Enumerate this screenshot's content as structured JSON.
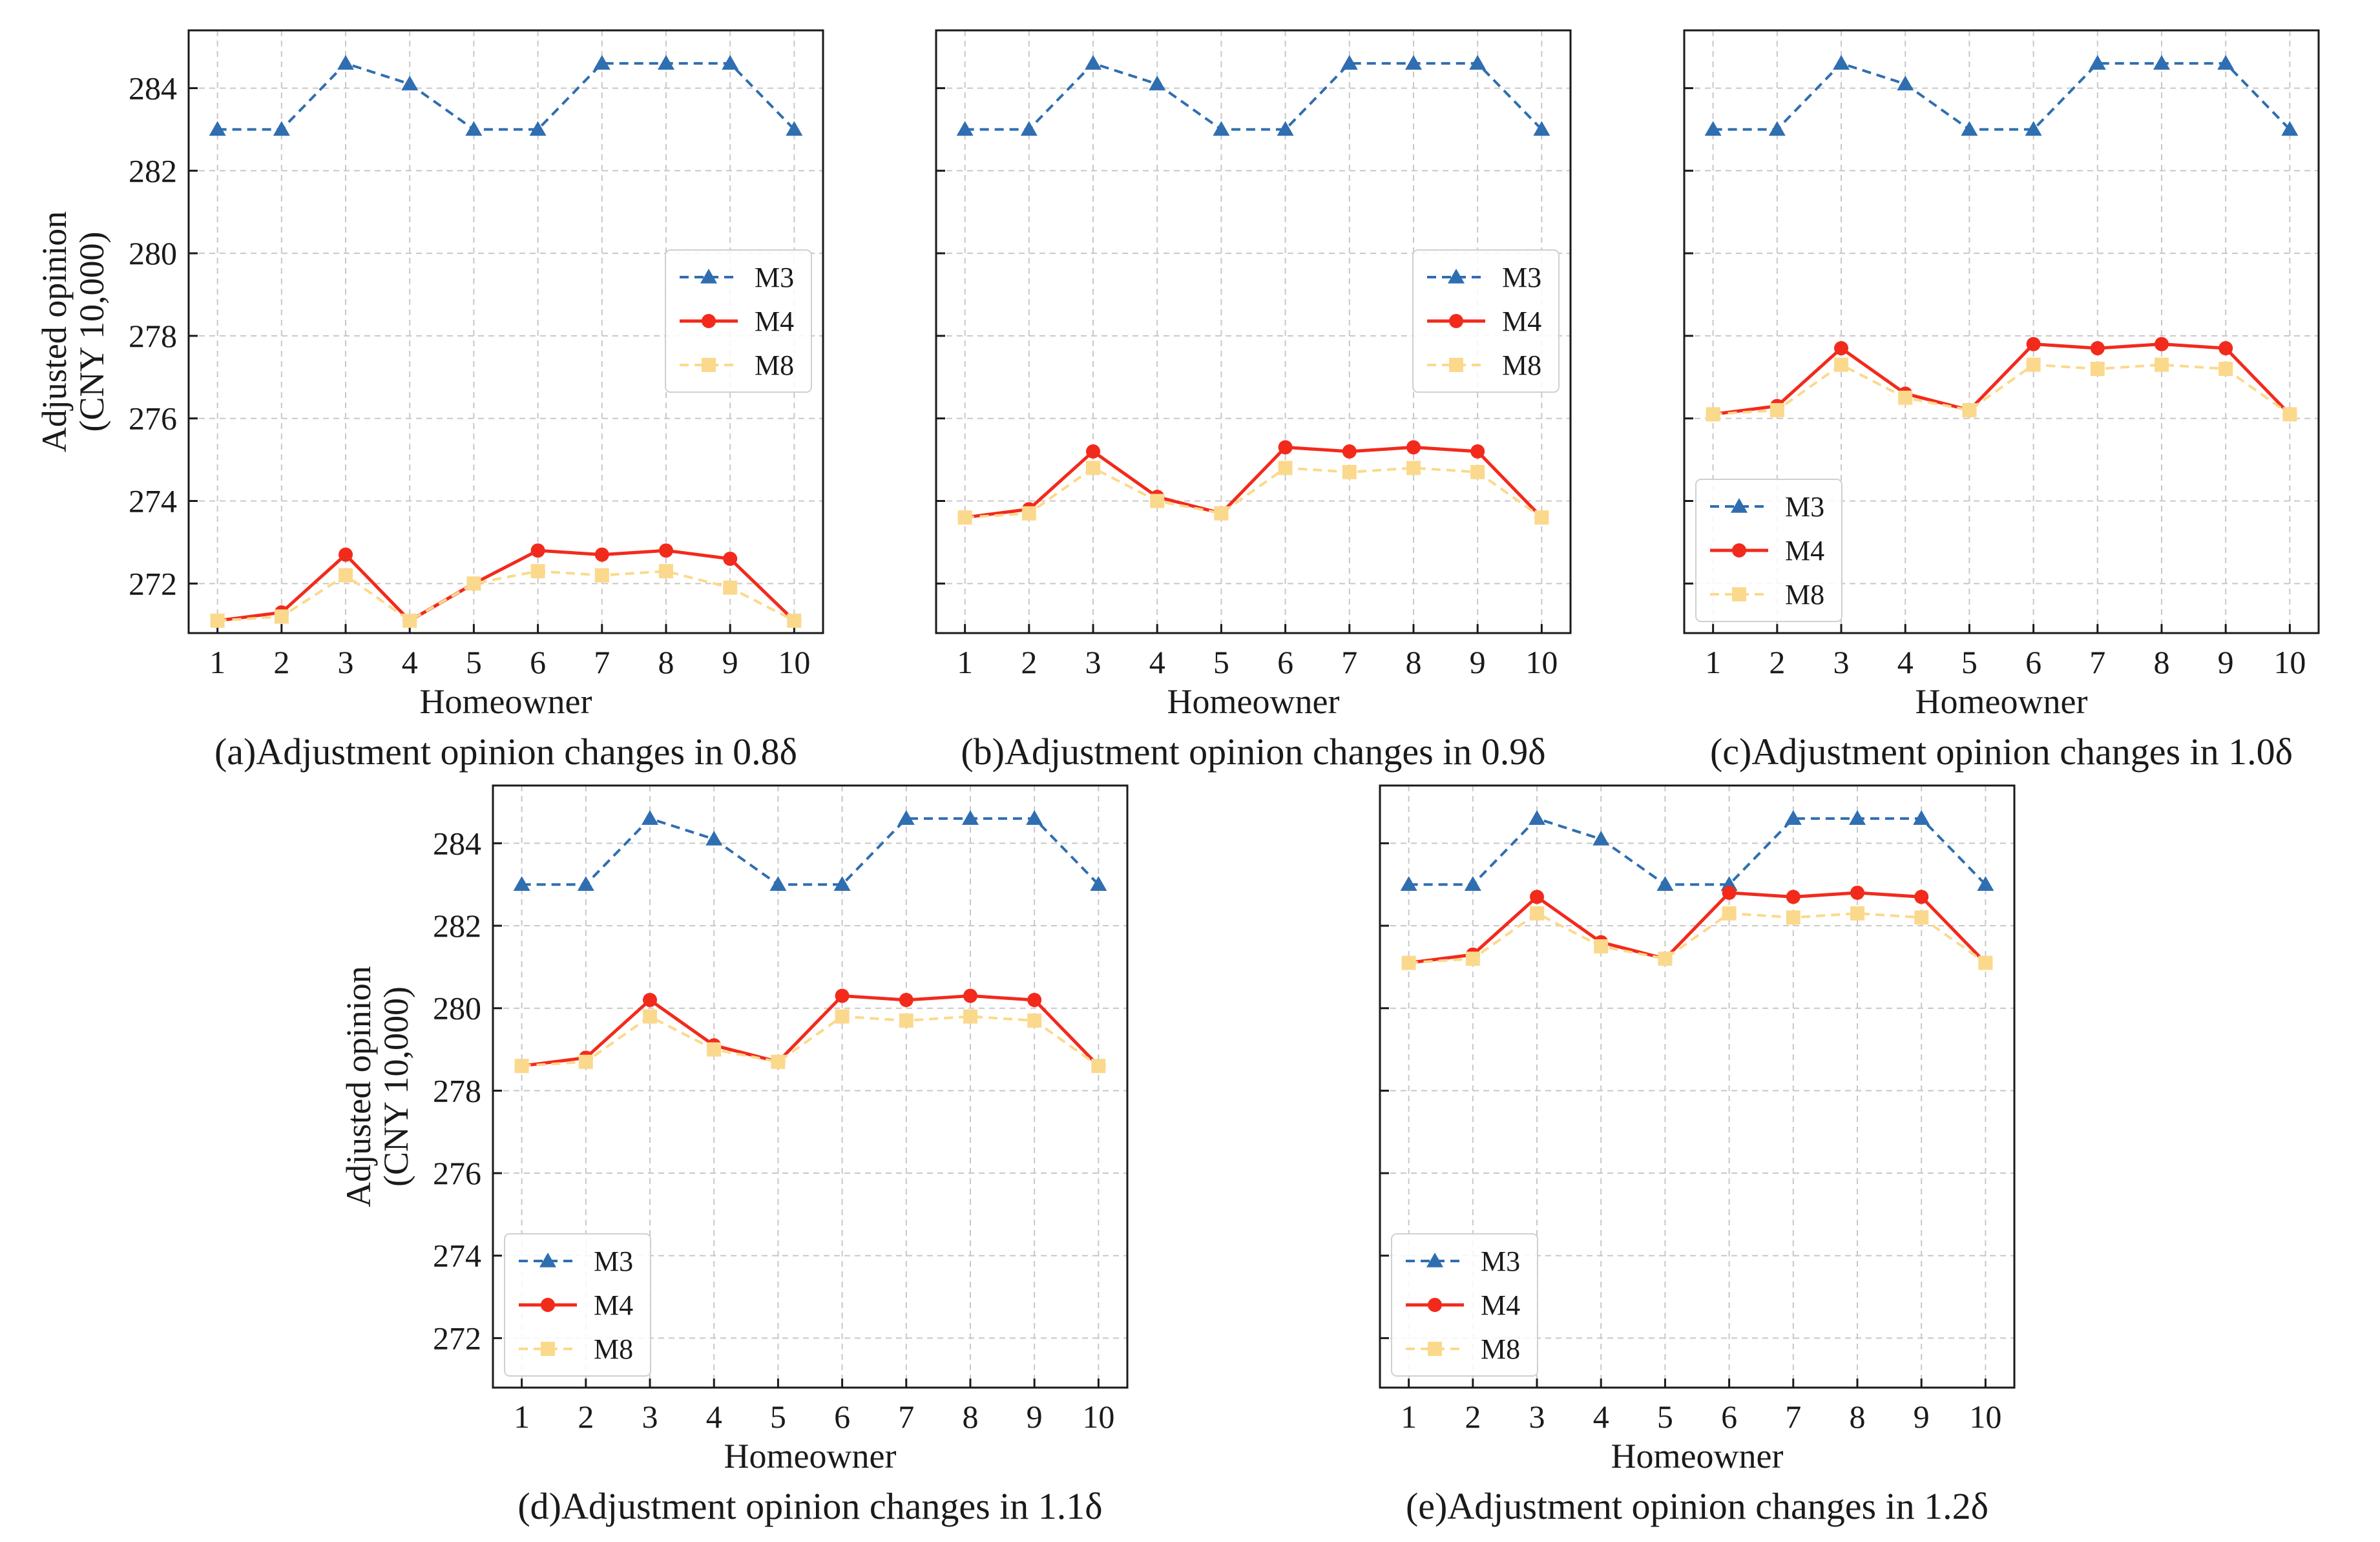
{
  "colors": {
    "M3": "#2f6eb0",
    "M4": "#f22a1c",
    "M8": "#fbd98c",
    "grid": "#c8c8c8",
    "axis": "#1a1a1a"
  },
  "chart_data": [
    {
      "type": "line",
      "caption": "(a)Adjustment opinion changes in 0.8δ",
      "xlabel": "Homeowner",
      "ylabel": [
        "Adjusted opinion",
        "(CNY 10,000)"
      ],
      "x": [
        1,
        2,
        3,
        4,
        5,
        6,
        7,
        8,
        9,
        10
      ],
      "xlim": [
        0.55,
        10.45
      ],
      "ylim": [
        270.8,
        285.4
      ],
      "yticks": [
        272,
        274,
        276,
        278,
        280,
        282,
        284
      ],
      "show_ytick_labels": true,
      "grid": true,
      "legend_position": "center-right",
      "series": [
        {
          "name": "M3",
          "marker": "triangle",
          "dash": "dashed",
          "values": [
            283.0,
            283.0,
            284.6,
            284.1,
            283.0,
            283.0,
            284.6,
            284.6,
            284.6,
            283.0
          ]
        },
        {
          "name": "M4",
          "marker": "circle",
          "dash": "solid",
          "values": [
            271.1,
            271.3,
            272.7,
            271.1,
            272.0,
            272.8,
            272.7,
            272.8,
            272.6,
            271.1
          ]
        },
        {
          "name": "M8",
          "marker": "square",
          "dash": "dashed",
          "values": [
            271.1,
            271.2,
            272.2,
            271.1,
            272.0,
            272.3,
            272.2,
            272.3,
            271.9,
            271.1
          ]
        }
      ]
    },
    {
      "type": "line",
      "caption": "(b)Adjustment opinion changes in 0.9δ",
      "xlabel": "Homeowner",
      "ylabel": [],
      "x": [
        1,
        2,
        3,
        4,
        5,
        6,
        7,
        8,
        9,
        10
      ],
      "xlim": [
        0.55,
        10.45
      ],
      "ylim": [
        270.8,
        285.4
      ],
      "yticks": [
        272,
        274,
        276,
        278,
        280,
        282,
        284
      ],
      "show_ytick_labels": false,
      "grid": true,
      "legend_position": "center-right",
      "series": [
        {
          "name": "M3",
          "marker": "triangle",
          "dash": "dashed",
          "values": [
            283.0,
            283.0,
            284.6,
            284.1,
            283.0,
            283.0,
            284.6,
            284.6,
            284.6,
            283.0
          ]
        },
        {
          "name": "M4",
          "marker": "circle",
          "dash": "solid",
          "values": [
            273.6,
            273.8,
            275.2,
            274.1,
            273.7,
            275.3,
            275.2,
            275.3,
            275.2,
            273.6
          ]
        },
        {
          "name": "M8",
          "marker": "square",
          "dash": "dashed",
          "values": [
            273.6,
            273.7,
            274.8,
            274.0,
            273.7,
            274.8,
            274.7,
            274.8,
            274.7,
            273.6
          ]
        }
      ]
    },
    {
      "type": "line",
      "caption": "(c)Adjustment opinion changes in 1.0δ",
      "xlabel": "Homeowner",
      "ylabel": [],
      "x": [
        1,
        2,
        3,
        4,
        5,
        6,
        7,
        8,
        9,
        10
      ],
      "xlim": [
        0.55,
        10.45
      ],
      "ylim": [
        270.8,
        285.4
      ],
      "yticks": [
        272,
        274,
        276,
        278,
        280,
        282,
        284
      ],
      "show_ytick_labels": false,
      "grid": true,
      "legend_position": "lower-left",
      "series": [
        {
          "name": "M3",
          "marker": "triangle",
          "dash": "dashed",
          "values": [
            283.0,
            283.0,
            284.6,
            284.1,
            283.0,
            283.0,
            284.6,
            284.6,
            284.6,
            283.0
          ]
        },
        {
          "name": "M4",
          "marker": "circle",
          "dash": "solid",
          "values": [
            276.1,
            276.3,
            277.7,
            276.6,
            276.2,
            277.8,
            277.7,
            277.8,
            277.7,
            276.1
          ]
        },
        {
          "name": "M8",
          "marker": "square",
          "dash": "dashed",
          "values": [
            276.1,
            276.2,
            277.3,
            276.5,
            276.2,
            277.3,
            277.2,
            277.3,
            277.2,
            276.1
          ]
        }
      ]
    },
    {
      "type": "line",
      "caption": "(d)Adjustment opinion changes in 1.1δ",
      "xlabel": "Homeowner",
      "ylabel": [
        "Adjusted opinion",
        "(CNY 10,000)"
      ],
      "x": [
        1,
        2,
        3,
        4,
        5,
        6,
        7,
        8,
        9,
        10
      ],
      "xlim": [
        0.55,
        10.45
      ],
      "ylim": [
        270.8,
        285.4
      ],
      "yticks": [
        272,
        274,
        276,
        278,
        280,
        282,
        284
      ],
      "show_ytick_labels": true,
      "grid": true,
      "legend_position": "lower-left",
      "series": [
        {
          "name": "M3",
          "marker": "triangle",
          "dash": "dashed",
          "values": [
            283.0,
            283.0,
            284.6,
            284.1,
            283.0,
            283.0,
            284.6,
            284.6,
            284.6,
            283.0
          ]
        },
        {
          "name": "M4",
          "marker": "circle",
          "dash": "solid",
          "values": [
            278.6,
            278.8,
            280.2,
            279.1,
            278.7,
            280.3,
            280.2,
            280.3,
            280.2,
            278.6
          ]
        },
        {
          "name": "M8",
          "marker": "square",
          "dash": "dashed",
          "values": [
            278.6,
            278.7,
            279.8,
            279.0,
            278.7,
            279.8,
            279.7,
            279.8,
            279.7,
            278.6
          ]
        }
      ]
    },
    {
      "type": "line",
      "caption": "(e)Adjustment opinion changes in 1.2δ",
      "xlabel": "Homeowner",
      "ylabel": [],
      "x": [
        1,
        2,
        3,
        4,
        5,
        6,
        7,
        8,
        9,
        10
      ],
      "xlim": [
        0.55,
        10.45
      ],
      "ylim": [
        270.8,
        285.4
      ],
      "yticks": [
        272,
        274,
        276,
        278,
        280,
        282,
        284
      ],
      "show_ytick_labels": false,
      "grid": true,
      "legend_position": "lower-left",
      "series": [
        {
          "name": "M3",
          "marker": "triangle",
          "dash": "dashed",
          "values": [
            283.0,
            283.0,
            284.6,
            284.1,
            283.0,
            283.0,
            284.6,
            284.6,
            284.6,
            283.0
          ]
        },
        {
          "name": "M4",
          "marker": "circle",
          "dash": "solid",
          "values": [
            281.1,
            281.3,
            282.7,
            281.6,
            281.2,
            282.8,
            282.7,
            282.8,
            282.7,
            281.1
          ]
        },
        {
          "name": "M8",
          "marker": "square",
          "dash": "dashed",
          "values": [
            281.1,
            281.2,
            282.3,
            281.5,
            281.2,
            282.3,
            282.2,
            282.3,
            282.2,
            281.1
          ]
        }
      ]
    }
  ]
}
